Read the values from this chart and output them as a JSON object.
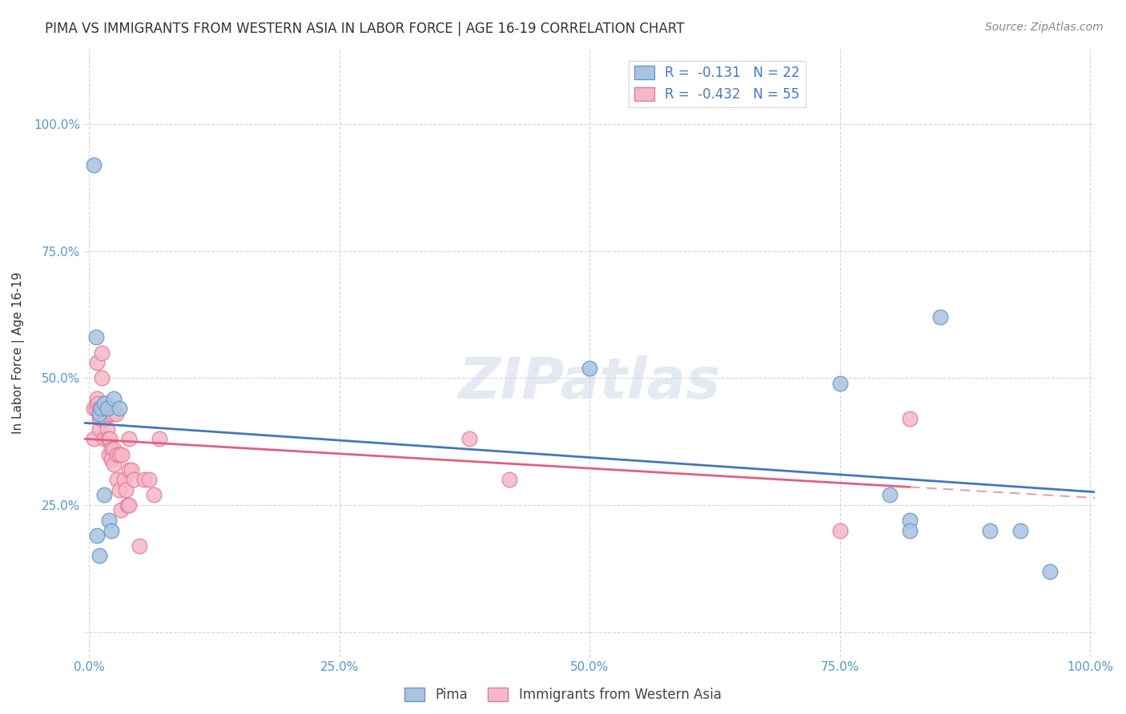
{
  "title": "PIMA VS IMMIGRANTS FROM WESTERN ASIA IN LABOR FORCE | AGE 16-19 CORRELATION CHART",
  "source": "Source: ZipAtlas.com",
  "ylabel": "In Labor Force | Age 16-19",
  "xlabel": "",
  "xlim": [
    -0.005,
    1.005
  ],
  "ylim": [
    -0.05,
    1.15
  ],
  "yticks": [
    0.0,
    0.25,
    0.5,
    0.75,
    1.0
  ],
  "ytick_labels": [
    "",
    "25.0%",
    "50.0%",
    "75.0%",
    "100.0%"
  ],
  "xticks": [
    0.0,
    0.25,
    0.5,
    0.75,
    1.0
  ],
  "xtick_labels": [
    "0.0%",
    "25.0%",
    "50.0%",
    "75.0%",
    "100.0%"
  ],
  "pima_color": "#a8c4e0",
  "pima_edge_color": "#6699cc",
  "immigrants_color": "#f4b8c8",
  "immigrants_edge_color": "#e87a9a",
  "trend_blue": "#4477bb",
  "trend_pink": "#e06080",
  "trend_pink_dashed": "#e8a0b0",
  "legend_r_blue": "-0.131",
  "legend_n_blue": "22",
  "legend_r_pink": "-0.432",
  "legend_n_pink": "55",
  "background_color": "#ffffff",
  "grid_color": "#cccccc",
  "watermark": "ZIPatlas",
  "pima_x": [
    0.005,
    0.007,
    0.008,
    0.01,
    0.01,
    0.012,
    0.015,
    0.015,
    0.018,
    0.02,
    0.022,
    0.025,
    0.03,
    0.5,
    0.75,
    0.8,
    0.82,
    0.82,
    0.85,
    0.9,
    0.93,
    0.96
  ],
  "pima_y": [
    0.92,
    0.58,
    0.19,
    0.15,
    0.43,
    0.44,
    0.45,
    0.27,
    0.44,
    0.22,
    0.2,
    0.46,
    0.44,
    0.52,
    0.49,
    0.27,
    0.22,
    0.2,
    0.62,
    0.2,
    0.2,
    0.12
  ],
  "immigrants_x": [
    0.005,
    0.005,
    0.007,
    0.008,
    0.008,
    0.009,
    0.01,
    0.01,
    0.01,
    0.012,
    0.012,
    0.013,
    0.013,
    0.015,
    0.015,
    0.015,
    0.015,
    0.016,
    0.016,
    0.017,
    0.017,
    0.018,
    0.018,
    0.019,
    0.02,
    0.021,
    0.022,
    0.022,
    0.023,
    0.025,
    0.025,
    0.027,
    0.028,
    0.028,
    0.03,
    0.03,
    0.032,
    0.033,
    0.035,
    0.037,
    0.038,
    0.04,
    0.04,
    0.04,
    0.042,
    0.045,
    0.05,
    0.055,
    0.06,
    0.065,
    0.07,
    0.38,
    0.42,
    0.75,
    0.82
  ],
  "immigrants_y": [
    0.44,
    0.38,
    0.44,
    0.53,
    0.46,
    0.45,
    0.44,
    0.42,
    0.4,
    0.44,
    0.42,
    0.55,
    0.5,
    0.44,
    0.43,
    0.42,
    0.38,
    0.44,
    0.42,
    0.45,
    0.43,
    0.44,
    0.4,
    0.38,
    0.35,
    0.38,
    0.36,
    0.34,
    0.43,
    0.36,
    0.33,
    0.43,
    0.35,
    0.3,
    0.35,
    0.28,
    0.24,
    0.35,
    0.3,
    0.28,
    0.25,
    0.38,
    0.32,
    0.25,
    0.32,
    0.3,
    0.17,
    0.3,
    0.3,
    0.27,
    0.38,
    0.38,
    0.3,
    0.2,
    0.42
  ]
}
